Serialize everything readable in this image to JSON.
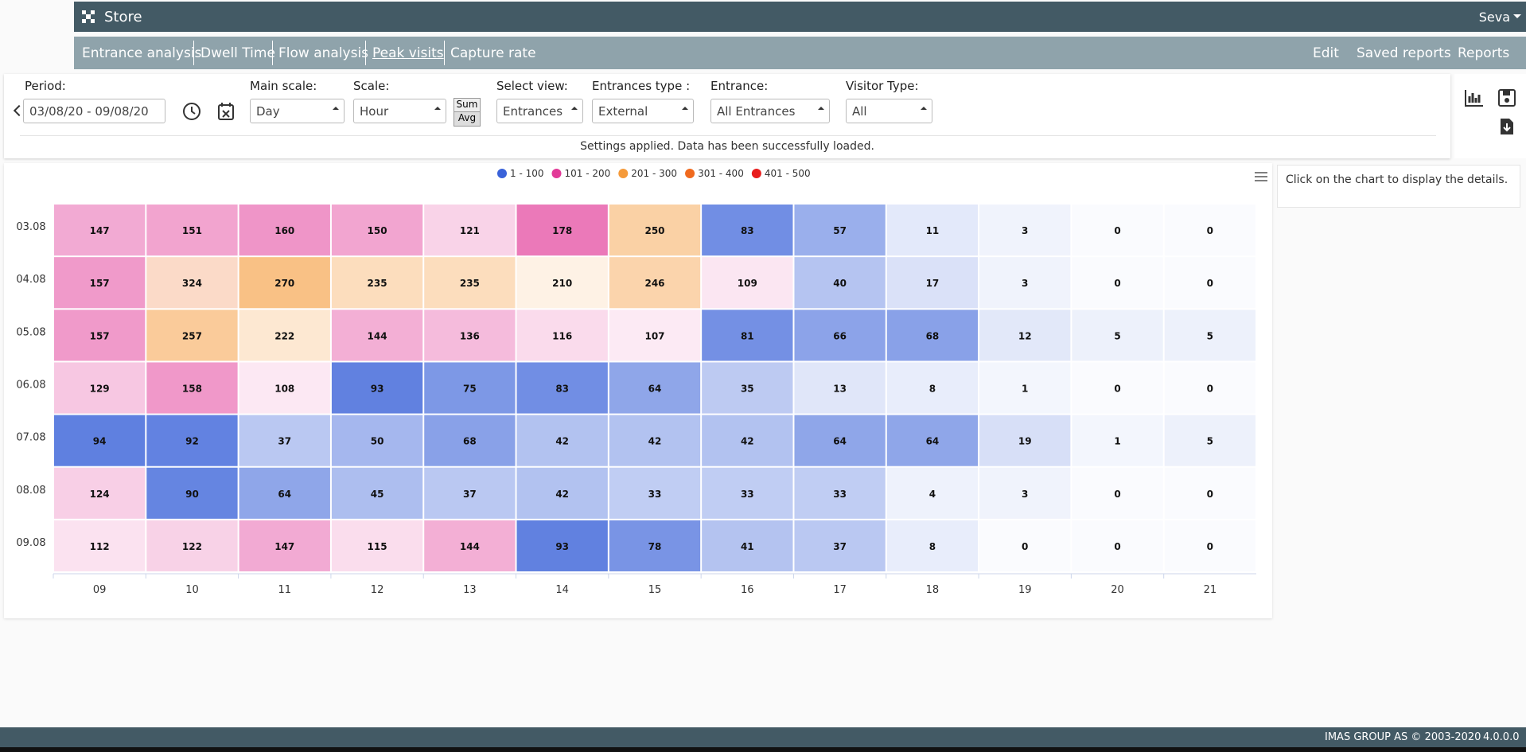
{
  "header": {
    "title": "Store",
    "user": "Seva"
  },
  "nav": {
    "tabs": [
      "Entrance analysis",
      "Dwell Time",
      "Flow analysis",
      "Peak visits",
      "Capture rate"
    ],
    "menus": [
      "Edit",
      "Saved reports",
      "Reports"
    ]
  },
  "filters": {
    "period": {
      "label": "Period:",
      "value": "03/08/20 - 09/08/20"
    },
    "main_scale": {
      "label": "Main scale:",
      "value": "Day"
    },
    "scale": {
      "label": "Scale:",
      "value": "Hour"
    },
    "sum": "Sum",
    "avg": "Avg",
    "select_view": {
      "label": "Select view:",
      "value": "Entrances"
    },
    "entrances_type": {
      "label": "Entrances type :",
      "value": "External"
    },
    "entrance": {
      "label": "Entrance:",
      "value": "All Entrances"
    },
    "visitor_type": {
      "label": "Visitor Type:",
      "value": "All"
    }
  },
  "status": "Settings applied. Data has been successfully loaded.",
  "side_note": "Click on the chart to display the details.",
  "footer": {
    "copyright": "IMAS GROUP AS © 2003-2020",
    "version": "4.0.0.0"
  },
  "chart_data": {
    "type": "heatmap",
    "x_categories": [
      "09",
      "10",
      "11",
      "12",
      "13",
      "14",
      "15",
      "16",
      "17",
      "18",
      "19",
      "20",
      "21"
    ],
    "y_categories": [
      "03.08",
      "04.08",
      "05.08",
      "06.08",
      "07.08",
      "08.08",
      "09.08"
    ],
    "values": [
      [
        147,
        151,
        160,
        150,
        121,
        178,
        250,
        83,
        57,
        11,
        3,
        0,
        0
      ],
      [
        157,
        324,
        270,
        235,
        235,
        210,
        246,
        109,
        40,
        17,
        3,
        0,
        0
      ],
      [
        157,
        257,
        222,
        144,
        136,
        116,
        107,
        81,
        66,
        68,
        12,
        5,
        5
      ],
      [
        129,
        158,
        108,
        93,
        75,
        83,
        64,
        35,
        13,
        8,
        1,
        0,
        0
      ],
      [
        94,
        92,
        37,
        50,
        68,
        42,
        42,
        42,
        64,
        64,
        19,
        1,
        5
      ],
      [
        124,
        90,
        64,
        45,
        37,
        42,
        33,
        33,
        33,
        4,
        3,
        0,
        0
      ],
      [
        112,
        122,
        147,
        115,
        144,
        93,
        78,
        41,
        37,
        8,
        0,
        0,
        0
      ]
    ],
    "legend": [
      {
        "name": "1 - 100",
        "min": 1,
        "max": 100,
        "color": "#3a62d9"
      },
      {
        "name": "101 - 200",
        "min": 101,
        "max": 200,
        "color": "#e23a98"
      },
      {
        "name": "201 - 300",
        "min": 201,
        "max": 300,
        "color": "#f59a3a"
      },
      {
        "name": "301 - 400",
        "min": 301,
        "max": 400,
        "color": "#f06a1e"
      },
      {
        "name": "401 - 500",
        "min": 401,
        "max": 500,
        "color": "#e81c1c"
      }
    ]
  }
}
